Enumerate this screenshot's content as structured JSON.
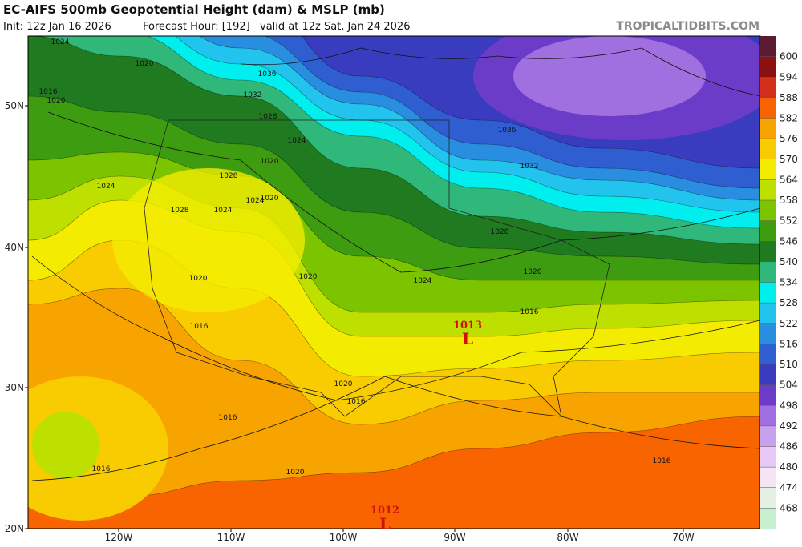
{
  "header": {
    "title": "EC-AIFS 500mb Geopotential Height (dam) & MSLP (mb)",
    "init": "Init: 12z Jan 16 2026",
    "forecast_hour": "Forecast Hour: [192]",
    "valid": "valid at 12z Sat, Jan 24 2026",
    "watermark": "TROPICALTIDBITS.COM"
  },
  "colorbar": {
    "labels": [
      "600",
      "594",
      "588",
      "582",
      "576",
      "570",
      "564",
      "558",
      "552",
      "546",
      "540",
      "534",
      "528",
      "522",
      "516",
      "510",
      "504",
      "498",
      "492",
      "486",
      "480",
      "474",
      "468"
    ]
  },
  "latitudes": [
    "50N",
    "40N",
    "30N",
    "20N"
  ],
  "longitudes": [
    "120W",
    "110W",
    "100W",
    "90W",
    "80W",
    "70W"
  ],
  "isobars": [
    "1024",
    "1020",
    "1016",
    "1020",
    "1036",
    "1032",
    "1028",
    "1024",
    "1020",
    "1028",
    "1024",
    "1028",
    "1024",
    "1020",
    "1024",
    "1020",
    "1020",
    "1016",
    "1036",
    "1032",
    "1028",
    "1024",
    "1020",
    "1016",
    "1020",
    "1016",
    "1016",
    "1020",
    "1016",
    "1016"
  ],
  "lows": [
    {
      "pressure": "1013",
      "symbol": "L"
    },
    {
      "pressure": "1012",
      "symbol": "L"
    }
  ]
}
